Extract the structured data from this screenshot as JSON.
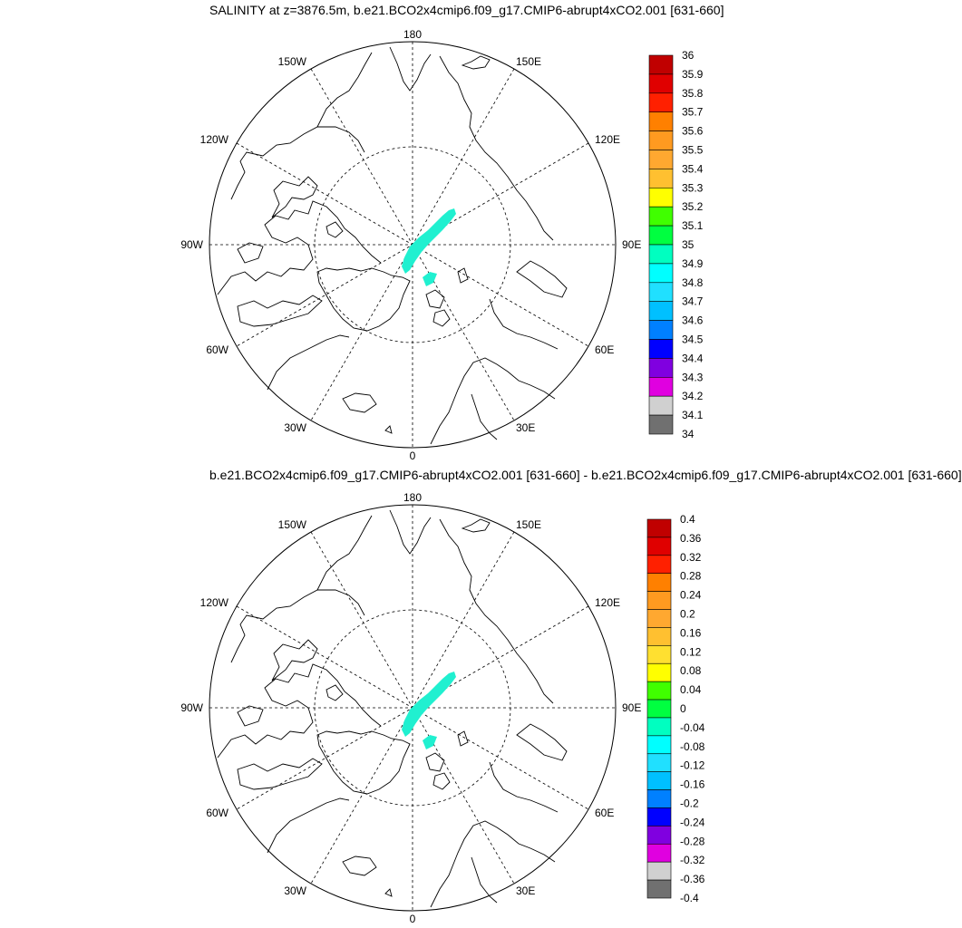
{
  "panels": [
    {
      "title": "SALINITY at z=3876.5m, b.e21.BCO2x4cmip6.f09_g17.CMIP6-abrupt4xCO2.001 [631-660]",
      "colorbar_labels": [
        "36",
        "35.9",
        "35.8",
        "35.7",
        "35.6",
        "35.5",
        "35.4",
        "35.3",
        "35.2",
        "35.1",
        "35",
        "34.9",
        "34.8",
        "34.7",
        "34.6",
        "34.5",
        "34.4",
        "34.3",
        "34.2",
        "34.1",
        "34"
      ]
    },
    {
      "title": "b.e21.BCO2x4cmip6.f09_g17.CMIP6-abrupt4xCO2.001 [631-660] - b.e21.BCO2x4cmip6.f09_g17.CMIP6-abrupt4xCO2.001 [631-660]",
      "colorbar_labels": [
        "0.4",
        "0.36",
        "0.32",
        "0.28",
        "0.24",
        "0.2",
        "0.16",
        "0.12",
        "0.08",
        "0.04",
        "0",
        "-0.04",
        "-0.08",
        "-0.12",
        "-0.16",
        "-0.2",
        "-0.24",
        "-0.28",
        "-0.32",
        "-0.36",
        "-0.4"
      ]
    }
  ],
  "longitude_labels": {
    "top": "180",
    "bottom": "0",
    "left": "90W",
    "right": "90E",
    "upper_left_1": "150W",
    "upper_right_1": "150E",
    "upper_left_2": "120W",
    "upper_right_2": "120E",
    "lower_left_2": "60W",
    "lower_right_2": "60E",
    "lower_left_1": "30W",
    "lower_right_1": "30E"
  },
  "colors": {
    "colorbar": [
      "#c00000",
      "#e00000",
      "#ff2000",
      "#ff8000",
      "#ff9a20",
      "#ffa830",
      "#ffc030",
      "#ffff00",
      "#40ff00",
      "#00ff40",
      "#00ffc0",
      "#00ffff",
      "#20e0ff",
      "#00c0ff",
      "#0080ff",
      "#0000ff",
      "#8000e0",
      "#e000e0",
      "#d0d0d0",
      "#707070"
    ],
    "colorbar_diff": [
      "#c00000",
      "#e00000",
      "#ff2000",
      "#ff8000",
      "#ff9a20",
      "#ffa830",
      "#ffc030",
      "#ffe030",
      "#ffff00",
      "#40ff00",
      "#00ff40",
      "#00ffc0",
      "#00ffff",
      "#20e0ff",
      "#00c0ff",
      "#0080ff",
      "#0000ff",
      "#8000e0",
      "#e000e0",
      "#d0d0d0",
      "#707070"
    ],
    "salinity_patch": "#20f0d0"
  }
}
